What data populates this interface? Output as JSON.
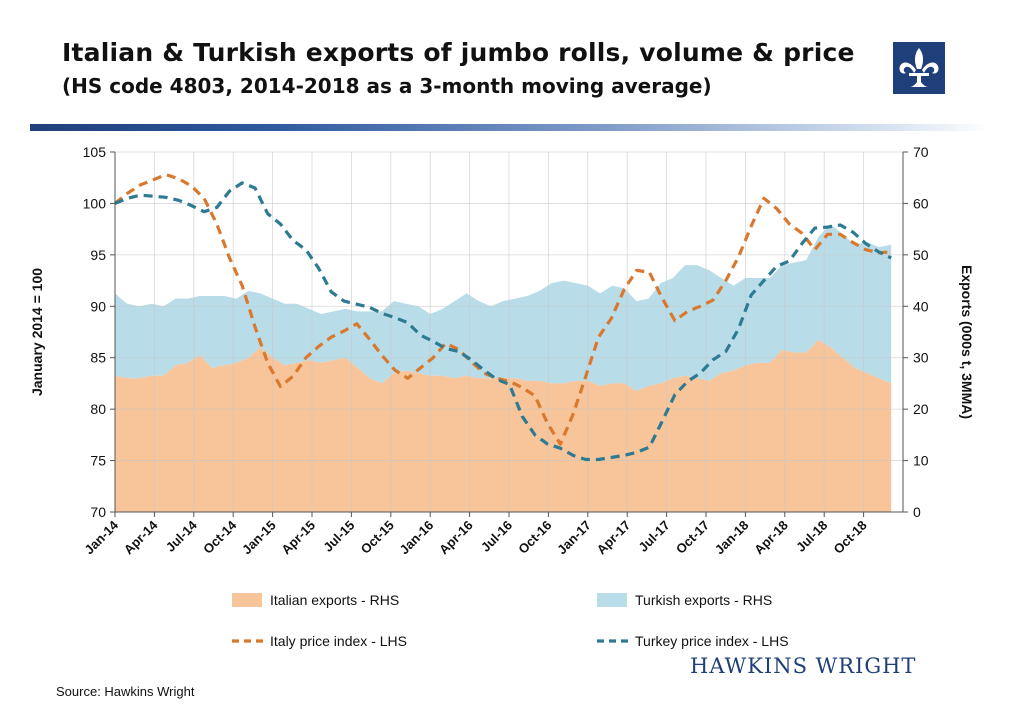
{
  "header": {
    "title": "Italian & Turkish exports of jumbo rolls, volume & price",
    "subtitle": "(HS code 4803, 2014-2018 as a 3-month moving average)"
  },
  "footer": {
    "source": "Source: Hawkins Wright",
    "brand": "HAWKINS WRIGHT"
  },
  "colors": {
    "italian_area": "#f8c49a",
    "turkish_area": "#b8dde8",
    "italy_line": "#d9782e",
    "turkey_line": "#2d7a92",
    "title_rule": "#1f3f7a"
  },
  "chart_data": {
    "type": "area",
    "x_tick_labels": [
      "Jan-14",
      "Apr-14",
      "Jul-14",
      "Oct-14",
      "Jan-15",
      "Apr-15",
      "Jul-15",
      "Oct-15",
      "Jan-16",
      "Apr-16",
      "Jul-16",
      "Oct-16",
      "Jan-17",
      "Apr-17",
      "Jul-17",
      "Oct-17",
      "Jan-18",
      "Apr-18",
      "Jul-18",
      "Oct-18"
    ],
    "y_left": {
      "label": "January 2014 = 100",
      "min": 70,
      "max": 105,
      "step": 5
    },
    "y_right": {
      "label": "Exports (000s t, 3MMA)",
      "min": 0,
      "max": 70,
      "step": 10
    },
    "grid": true,
    "legend_position": "bottom",
    "series": [
      {
        "name": "Italian exports - RHS",
        "type": "area",
        "axis": "right",
        "stack": 0,
        "values": [
          26.5,
          26,
          26,
          26.5,
          26.5,
          28.5,
          29,
          30.5,
          28,
          28.5,
          29,
          30,
          32,
          30,
          28.5,
          29,
          29.5,
          29,
          29.5,
          30,
          28,
          26,
          25,
          27,
          27.5,
          27,
          26.5,
          26.5,
          26,
          26.5,
          26,
          26,
          26,
          26,
          25.5,
          25.5,
          25,
          25,
          25.5,
          25.5,
          24.5,
          25,
          25,
          23.5,
          24.5,
          25,
          26,
          26.5,
          26,
          25.5,
          27,
          27.5,
          28.5,
          29,
          29,
          31.5,
          31,
          31,
          33.5,
          32,
          30,
          28,
          27,
          26,
          25
        ]
      },
      {
        "name": "Turkish exports - RHS",
        "type": "area",
        "axis": "right",
        "stack": 1,
        "values": [
          16,
          14.5,
          14,
          14,
          13.5,
          13,
          12.5,
          11.5,
          14,
          13.5,
          12.5,
          13,
          10.5,
          11.5,
          12,
          11.5,
          10,
          9.5,
          9.5,
          9.5,
          11,
          13,
          14,
          14,
          13,
          13,
          12,
          13,
          15,
          16,
          15,
          14,
          15,
          15.5,
          16.5,
          17.5,
          19.5,
          20,
          19,
          18.5,
          18,
          19,
          18.5,
          17.5,
          17,
          19.5,
          19.5,
          21.5,
          22,
          21.5,
          18.5,
          16.5,
          17,
          16.5,
          16.5,
          16.5,
          17.5,
          18,
          20,
          24,
          24,
          24,
          25.5,
          25.5,
          27
        ]
      },
      {
        "name": "Italy price index - LHS",
        "type": "dashed-line",
        "axis": "left",
        "values": [
          100,
          101,
          101.8,
          102.3,
          102.8,
          102.4,
          101.7,
          100.5,
          98,
          94.7,
          92,
          88,
          84.5,
          82.2,
          83.2,
          85,
          86.1,
          87,
          87.6,
          88.3,
          86.8,
          85.2,
          83.8,
          83,
          84,
          85,
          86.4,
          85.8,
          84.6,
          83.5,
          83,
          82.7,
          82.1,
          81.3,
          78.6,
          76.6,
          79.5,
          83.2,
          87,
          88.8,
          91.6,
          93.5,
          93.3,
          90.8,
          88.6,
          89.5,
          90,
          90.6,
          92.5,
          94.8,
          97.8,
          100.5,
          99.5,
          98,
          97.1,
          95.5,
          97,
          97,
          96.2,
          95.5,
          95.2,
          95.3
        ]
      },
      {
        "name": "Turkey price index - LHS",
        "type": "dashed-line",
        "axis": "left",
        "values": [
          100,
          100.5,
          100.8,
          100.7,
          100.6,
          100.3,
          99.8,
          99.2,
          99.6,
          101.2,
          102,
          101.5,
          99,
          98,
          96.4,
          95.5,
          93.7,
          91.4,
          90.5,
          90.2,
          89.9,
          89.3,
          88.9,
          88.4,
          87.2,
          86.6,
          85.9,
          85.6,
          84.8,
          83.8,
          82.9,
          82.4,
          79.3,
          77.5,
          76.6,
          76.2,
          75.5,
          75.1,
          75.1,
          75.3,
          75.5,
          75.8,
          76.3,
          78.8,
          81.4,
          82.7,
          83.5,
          84.8,
          85.6,
          87.8,
          91.1,
          92.5,
          93.9,
          94.4,
          96.1,
          97.6,
          97.7,
          97.9,
          97.2,
          96.1,
          95.3,
          94.7
        ]
      }
    ]
  }
}
